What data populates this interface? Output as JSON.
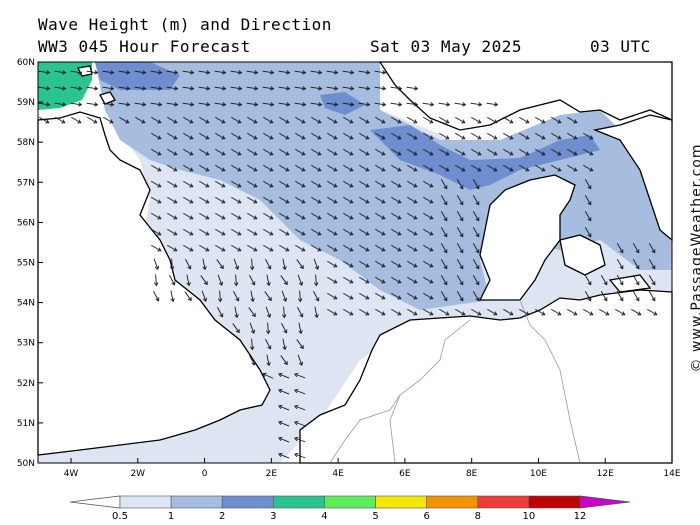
{
  "title": {
    "line1": "Wave Height (m) and Direction",
    "line2": "WW3 045 Hour Forecast",
    "date": "Sat 03 May 2025",
    "time": "03 UTC"
  },
  "credit": "© www.PassageWeather.com",
  "map": {
    "lat_labels": [
      "60N",
      "59N",
      "58N",
      "57N",
      "56N",
      "55N",
      "54N",
      "53N",
      "52N",
      "51N",
      "50N"
    ],
    "lon_labels": [
      "4W",
      "2W",
      "0",
      "2E",
      "4E",
      "6E",
      "8E",
      "10E",
      "12E",
      "14E"
    ],
    "lat_range": [
      50,
      60
    ],
    "lon_range": [
      -5,
      14
    ],
    "arrow_direction_note": "predominantly toward south-east"
  },
  "colorbar": {
    "labels": [
      "0.5",
      "1",
      "2",
      "3",
      "4",
      "5",
      "6",
      "8",
      "10",
      "12"
    ],
    "colors": [
      "#dde5f2",
      "#a7bddf",
      "#6f8ed0",
      "#2bc490",
      "#5cec5c",
      "#f5e800",
      "#f59200",
      "#ec3b3b",
      "#c00000",
      "#cc00cc"
    ]
  }
}
